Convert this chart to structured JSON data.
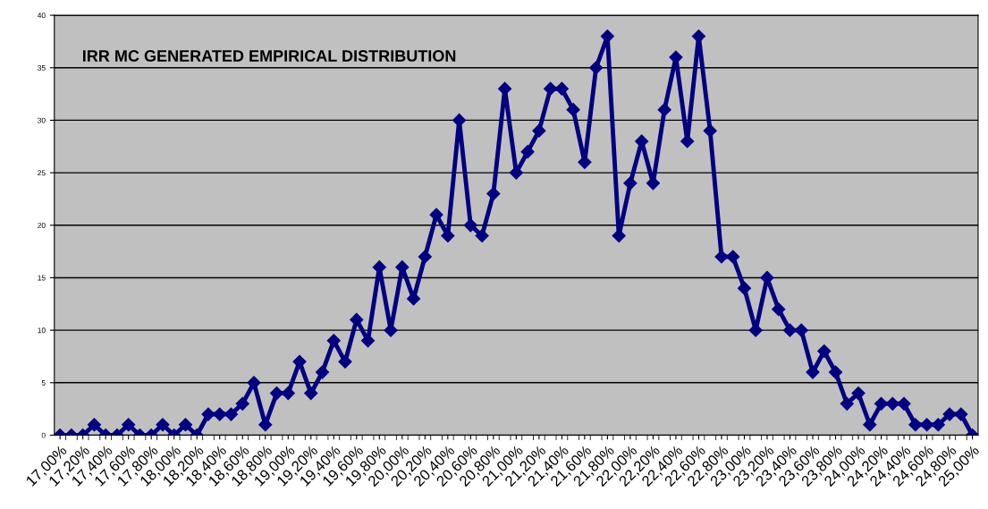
{
  "chart_data": {
    "type": "line",
    "title": "IRR MC GENERATED EMPIRICAL DISTRIBUTION",
    "categories": [
      "17,00%",
      null,
      "17,20%",
      null,
      "17,40%",
      null,
      "17,60%",
      null,
      "17,80%",
      null,
      "18,00%",
      null,
      "18,20%",
      null,
      "18,40%",
      null,
      "18,60%",
      null,
      "18,80%",
      null,
      "19,00%",
      null,
      "19,20%",
      null,
      "19,40%",
      null,
      "19,60%",
      null,
      "19,80%",
      null,
      "20,00%",
      null,
      "20,20%",
      null,
      "20,40%",
      null,
      "20,60%",
      null,
      "20,80%",
      null,
      "21,00%",
      null,
      "21,20%",
      null,
      "21,40%",
      null,
      "21,60%",
      null,
      "21,80%",
      null,
      "22,00%",
      null,
      "22,20%",
      null,
      "22,40%",
      null,
      "22,60%",
      null,
      "22,80%",
      null,
      "23,00%",
      null,
      "23,20%",
      null,
      "23,40%",
      null,
      "23,60%",
      null,
      "23,80%",
      null,
      "24,00%",
      null,
      "24,20%",
      null,
      "24,40%",
      null,
      "24,60%",
      null,
      "24,80%",
      null,
      "25,00%"
    ],
    "series": [
      {
        "color": "#000080",
        "values": [
          0,
          0,
          0,
          1,
          0,
          0,
          1,
          0,
          0,
          1,
          0,
          1,
          0,
          2,
          2,
          2,
          3,
          5,
          1,
          4,
          4,
          7,
          4,
          6,
          9,
          7,
          11,
          9,
          16,
          10,
          16,
          13,
          17,
          21,
          19,
          30,
          20,
          19,
          23,
          33,
          25,
          27,
          29,
          33,
          33,
          31,
          26,
          35,
          38,
          19,
          24,
          28,
          24,
          31,
          36,
          28,
          38,
          29,
          17,
          17,
          14,
          10,
          15,
          12,
          10,
          10,
          6,
          8,
          6,
          3,
          4,
          1,
          3,
          3,
          3,
          1,
          1,
          1,
          2,
          2,
          0
        ]
      }
    ],
    "ylim": [
      0,
      40
    ],
    "yticks": [
      0,
      5,
      10,
      15,
      20,
      25,
      30,
      35,
      40
    ],
    "grid": "y",
    "marker": "diamond",
    "line_style": "solid",
    "legend": false
  }
}
